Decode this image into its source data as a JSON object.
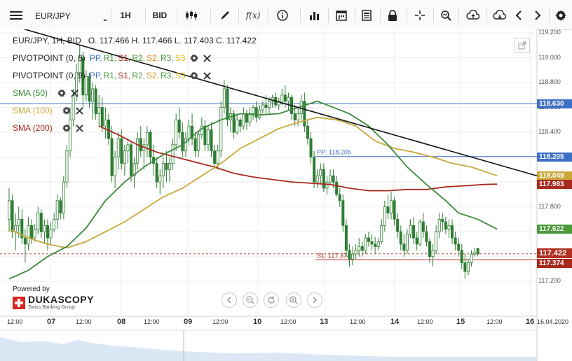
{
  "toolbar": {
    "symbol": "EUR/JPY",
    "timeframe": "1H",
    "price_type": "BID",
    "icons": [
      "menu-icon",
      "candle-type-icon",
      "draw-pen-icon",
      "function-icon",
      "info-icon",
      "bar-volume-icon",
      "calendar-icon",
      "report-icon",
      "lock-icon",
      "crosshair-icon",
      "zoom-icon",
      "upload-icon",
      "download-icon",
      "chevron-left-icon",
      "chevron-right-icon",
      "gear-icon"
    ]
  },
  "header": {
    "ohlc_line": "EUR/JPY, 1H, BID   O. 117.466 H. 117.466 L. 117.403 C. 117.422"
  },
  "legend": {
    "pivot1": {
      "name": "PIVOTPOINT (0, 8)",
      "levels": [
        "PP,",
        "R1,",
        "S1,",
        "R2,",
        "S2,",
        "R3,",
        "S3"
      ]
    },
    "pivot2": {
      "name": "PIVOTPOINT (0, 9)",
      "levels": [
        "PP,",
        "R1,",
        "S1,",
        "R2,",
        "S2,",
        "R3,",
        "S3"
      ]
    },
    "sma50": "SMA (50)",
    "sma100": "SMA (100)",
    "sma200": "SMA (200)"
  },
  "logo": {
    "powered_by": "Powered by",
    "brand": "DUKASCOPY",
    "tagline": "Swiss Banking Group"
  },
  "colors": {
    "candle": "#2e7d32",
    "sma50": "#3a8a3a",
    "sma100": "#c9a83a",
    "sma200": "#a82a1e",
    "pp": "#3e6fc7",
    "s1": "#a82a1e",
    "trend": "#111111",
    "tag_blue": "#3e6fc7",
    "tag_green": "#4a9a3a",
    "tag_yellow": "#c9a83a",
    "tag_red": "#b03020",
    "tag_dark_red": "#a82a1e"
  },
  "chart_data": {
    "type": "candlestick",
    "symbol": "EUR/JPY",
    "timeframe": "1H",
    "ylim": [
      117.1,
      119.2
    ],
    "y_ticks": [
      "119.200",
      "119.000",
      "118.800",
      "118.600",
      "118.400",
      "118.200",
      "118.000",
      "117.800",
      "117.600",
      "117.400",
      "117.200"
    ],
    "x_tick_labels": [
      "12:00",
      "07",
      "12:00",
      "08",
      "12:00",
      "09",
      "12:00",
      "10",
      "12:00",
      "13",
      "12:00",
      "14",
      "12:00",
      "15",
      "12:00",
      "16",
      "16.04.2020"
    ],
    "x_day_labels": [
      "07",
      "08",
      "09",
      "10",
      "13",
      "14",
      "15",
      "16"
    ],
    "horizontal_levels": [
      {
        "name": "",
        "value": 118.63,
        "label": "118.630",
        "color": "#3e6fc7"
      },
      {
        "name": "PP",
        "value": 118.205,
        "label": "118.205",
        "chart_label": "PP: 118.205",
        "color": "#3e6fc7"
      },
      {
        "name": "S1",
        "value": 117.374,
        "label": "117.374",
        "chart_label": "S1: 117.374",
        "color": "#a82a1e"
      }
    ],
    "price_tags": [
      {
        "label": "118.630",
        "value": 118.63,
        "color": "#3e6fc7"
      },
      {
        "label": "118.205",
        "value": 118.205,
        "color": "#3e6fc7"
      },
      {
        "label": "118.049",
        "value": 118.049,
        "color": "#c9a83a"
      },
      {
        "label": "117.983",
        "value": 117.983,
        "color": "#a82a1e"
      },
      {
        "label": "117.622",
        "value": 117.622,
        "color": "#4a9a3a"
      },
      {
        "label": "117.422",
        "value": 117.422,
        "color": "#b03020"
      },
      {
        "label": "117.374",
        "value": 117.374,
        "color": "#a82a1e"
      }
    ],
    "last_close": 117.422,
    "trendline": {
      "from": [
        2,
        119.25
      ],
      "to": [
        166,
        118.05
      ]
    },
    "sma50": [
      [
        0,
        117.22
      ],
      [
        6,
        117.29
      ],
      [
        12,
        117.4
      ],
      [
        18,
        117.48
      ],
      [
        24,
        117.63
      ],
      [
        30,
        117.85
      ],
      [
        36,
        118.0
      ],
      [
        42,
        118.12
      ],
      [
        48,
        118.22
      ],
      [
        54,
        118.3
      ],
      [
        60,
        118.43
      ],
      [
        66,
        118.5
      ],
      [
        72,
        118.55
      ],
      [
        78,
        118.54
      ],
      [
        84,
        118.55
      ],
      [
        90,
        118.6
      ],
      [
        96,
        118.65
      ],
      [
        100,
        118.61
      ],
      [
        106,
        118.55
      ],
      [
        112,
        118.45
      ],
      [
        118,
        118.3
      ],
      [
        124,
        118.12
      ],
      [
        130,
        117.98
      ],
      [
        136,
        117.85
      ],
      [
        140,
        117.75
      ],
      [
        146,
        117.7
      ],
      [
        152,
        117.62
      ]
    ],
    "sma100": [
      [
        0,
        117.62
      ],
      [
        6,
        117.55
      ],
      [
        12,
        117.5
      ],
      [
        18,
        117.47
      ],
      [
        24,
        117.52
      ],
      [
        30,
        117.6
      ],
      [
        36,
        117.68
      ],
      [
        42,
        117.78
      ],
      [
        48,
        117.88
      ],
      [
        54,
        117.95
      ],
      [
        60,
        118.05
      ],
      [
        66,
        118.15
      ],
      [
        72,
        118.27
      ],
      [
        78,
        118.35
      ],
      [
        84,
        118.43
      ],
      [
        90,
        118.48
      ],
      [
        96,
        118.52
      ],
      [
        102,
        118.5
      ],
      [
        108,
        118.45
      ],
      [
        114,
        118.33
      ],
      [
        120,
        118.27
      ],
      [
        126,
        118.24
      ],
      [
        132,
        118.2
      ],
      [
        138,
        118.15
      ],
      [
        144,
        118.12
      ],
      [
        152,
        118.05
      ]
    ],
    "sma200": [
      [
        28,
        118.45
      ],
      [
        34,
        118.38
      ],
      [
        40,
        118.3
      ],
      [
        46,
        118.24
      ],
      [
        52,
        118.2
      ],
      [
        58,
        118.16
      ],
      [
        64,
        118.12
      ],
      [
        70,
        118.07
      ],
      [
        76,
        118.04
      ],
      [
        82,
        118.02
      ],
      [
        88,
        118.0
      ],
      [
        94,
        117.99
      ],
      [
        100,
        117.98
      ],
      [
        106,
        117.95
      ],
      [
        112,
        117.93
      ],
      [
        118,
        117.93
      ],
      [
        124,
        117.94
      ],
      [
        130,
        117.94
      ],
      [
        136,
        117.96
      ],
      [
        142,
        117.97
      ],
      [
        148,
        117.98
      ],
      [
        152,
        117.983
      ]
    ],
    "candles": [
      [
        117.7,
        117.95,
        117.6,
        117.85
      ],
      [
        117.85,
        117.9,
        117.55,
        117.6
      ],
      [
        117.6,
        117.75,
        117.45,
        117.65
      ],
      [
        117.65,
        117.8,
        117.55,
        117.7
      ],
      [
        117.7,
        117.78,
        117.5,
        117.55
      ],
      [
        117.55,
        117.62,
        117.35,
        117.5
      ],
      [
        117.5,
        117.72,
        117.45,
        117.65
      ],
      [
        117.65,
        117.7,
        117.5,
        117.55
      ],
      [
        117.55,
        117.66,
        117.52,
        117.62
      ],
      [
        117.62,
        117.8,
        117.58,
        117.75
      ],
      [
        117.75,
        117.78,
        117.55,
        117.6
      ],
      [
        117.6,
        117.7,
        117.5,
        117.65
      ],
      [
        117.65,
        117.7,
        117.45,
        117.55
      ],
      [
        117.55,
        117.68,
        117.5,
        117.62
      ],
      [
        117.62,
        117.75,
        117.6,
        117.7
      ],
      [
        117.7,
        117.9,
        117.62,
        117.85
      ],
      [
        117.85,
        117.88,
        117.7,
        117.75
      ],
      [
        117.75,
        118.05,
        117.7,
        118.0
      ],
      [
        118.0,
        118.3,
        117.95,
        118.25
      ],
      [
        118.25,
        118.6,
        118.2,
        118.5
      ],
      [
        118.5,
        118.75,
        118.45,
        118.7
      ],
      [
        118.7,
        118.95,
        118.65,
        118.88
      ],
      [
        118.88,
        119.1,
        118.8,
        119.0
      ],
      [
        119.0,
        119.05,
        118.6,
        118.7
      ],
      [
        118.7,
        118.9,
        118.65,
        118.85
      ],
      [
        118.85,
        118.88,
        118.6,
        118.65
      ],
      [
        118.65,
        118.8,
        118.5,
        118.75
      ],
      [
        118.75,
        118.78,
        118.5,
        118.55
      ],
      [
        118.55,
        118.7,
        118.45,
        118.6
      ],
      [
        118.6,
        118.68,
        118.4,
        118.45
      ],
      [
        118.45,
        118.6,
        118.35,
        118.5
      ],
      [
        118.5,
        118.55,
        118.3,
        118.35
      ],
      [
        118.35,
        118.45,
        118.0,
        118.05
      ],
      [
        118.05,
        118.25,
        117.95,
        118.2
      ],
      [
        118.2,
        118.4,
        118.1,
        118.35
      ],
      [
        118.35,
        118.42,
        118.1,
        118.15
      ],
      [
        118.15,
        118.3,
        118.05,
        118.25
      ],
      [
        118.25,
        118.35,
        118.15,
        118.3
      ],
      [
        118.3,
        118.32,
        118.0,
        118.05
      ],
      [
        118.05,
        118.2,
        117.95,
        118.15
      ],
      [
        118.15,
        118.4,
        118.1,
        118.35
      ],
      [
        118.35,
        118.45,
        118.2,
        118.25
      ],
      [
        118.25,
        118.35,
        118.1,
        118.3
      ],
      [
        118.3,
        118.45,
        118.2,
        118.4
      ],
      [
        118.4,
        118.42,
        118.15,
        118.2
      ],
      [
        118.2,
        118.3,
        118.05,
        118.15
      ],
      [
        118.15,
        118.2,
        117.95,
        118.0
      ],
      [
        118.0,
        118.1,
        117.9,
        118.05
      ],
      [
        118.05,
        118.2,
        117.95,
        118.15
      ],
      [
        118.15,
        118.25,
        118.0,
        118.1
      ],
      [
        118.1,
        118.2,
        118.0,
        118.15
      ],
      [
        118.15,
        118.35,
        118.1,
        118.3
      ],
      [
        118.3,
        118.55,
        118.25,
        118.5
      ],
      [
        118.5,
        118.6,
        118.35,
        118.4
      ],
      [
        118.4,
        118.48,
        118.2,
        118.25
      ],
      [
        118.25,
        118.4,
        118.2,
        118.35
      ],
      [
        118.35,
        118.5,
        118.3,
        118.45
      ],
      [
        118.45,
        118.55,
        118.3,
        118.35
      ],
      [
        118.35,
        118.4,
        118.2,
        118.25
      ],
      [
        118.25,
        118.4,
        118.2,
        118.38
      ],
      [
        118.38,
        118.52,
        118.35,
        118.45
      ],
      [
        118.45,
        118.5,
        118.25,
        118.3
      ],
      [
        118.3,
        118.45,
        118.25,
        118.42
      ],
      [
        118.42,
        118.48,
        118.2,
        118.25
      ],
      [
        118.25,
        118.3,
        118.1,
        118.15
      ],
      [
        118.15,
        118.3,
        118.1,
        118.25
      ],
      [
        118.25,
        118.65,
        118.2,
        118.6
      ],
      [
        118.6,
        118.82,
        118.55,
        118.75
      ],
      [
        118.75,
        118.78,
        118.45,
        118.5
      ],
      [
        118.5,
        118.6,
        118.4,
        118.55
      ],
      [
        118.55,
        118.58,
        118.35,
        118.4
      ],
      [
        118.4,
        118.55,
        118.38,
        118.5
      ],
      [
        118.5,
        118.52,
        118.4,
        118.45
      ],
      [
        118.45,
        118.6,
        118.42,
        118.55
      ],
      [
        118.55,
        118.58,
        118.42,
        118.48
      ],
      [
        118.48,
        118.6,
        118.45,
        118.55
      ],
      [
        118.55,
        118.62,
        118.5,
        118.6
      ],
      [
        118.6,
        118.65,
        118.48,
        118.52
      ],
      [
        118.52,
        118.62,
        118.5,
        118.58
      ],
      [
        118.58,
        118.65,
        118.55,
        118.62
      ],
      [
        118.62,
        118.7,
        118.55,
        118.6
      ],
      [
        118.6,
        118.68,
        118.55,
        118.65
      ],
      [
        118.65,
        118.7,
        118.6,
        118.68
      ],
      [
        118.68,
        118.72,
        118.6,
        118.62
      ],
      [
        118.62,
        118.68,
        118.58,
        118.65
      ],
      [
        118.65,
        118.75,
        118.62,
        118.7
      ],
      [
        118.7,
        118.78,
        118.6,
        118.65
      ],
      [
        118.65,
        118.72,
        118.58,
        118.68
      ],
      [
        118.68,
        118.7,
        118.5,
        118.55
      ],
      [
        118.55,
        118.62,
        118.45,
        118.5
      ],
      [
        118.5,
        118.6,
        118.45,
        118.55
      ],
      [
        118.55,
        118.7,
        118.5,
        118.65
      ],
      [
        118.65,
        118.72,
        118.4,
        118.45
      ],
      [
        118.45,
        118.5,
        118.3,
        118.35
      ],
      [
        118.35,
        118.4,
        118.15,
        118.2
      ],
      [
        118.2,
        118.25,
        117.95,
        118.0
      ],
      [
        118.0,
        118.1,
        117.95,
        118.05
      ],
      [
        118.05,
        118.15,
        117.98,
        118.1
      ],
      [
        118.1,
        118.15,
        117.92,
        117.95
      ],
      [
        117.95,
        118.05,
        117.9,
        118.0
      ],
      [
        118.0,
        118.1,
        117.98,
        118.05
      ],
      [
        118.05,
        118.1,
        117.95,
        118.0
      ],
      [
        118.0,
        118.05,
        117.88,
        117.9
      ],
      [
        117.9,
        117.95,
        117.8,
        117.85
      ],
      [
        117.85,
        117.9,
        117.6,
        117.65
      ],
      [
        117.65,
        117.7,
        117.4,
        117.45
      ],
      [
        117.45,
        117.5,
        117.32,
        117.38
      ],
      [
        117.38,
        117.48,
        117.33,
        117.42
      ],
      [
        117.42,
        117.5,
        117.38,
        117.45
      ],
      [
        117.45,
        117.55,
        117.4,
        117.48
      ],
      [
        117.48,
        117.52,
        117.4,
        117.45
      ],
      [
        117.45,
        117.58,
        117.42,
        117.55
      ],
      [
        117.55,
        117.6,
        117.48,
        117.52
      ],
      [
        117.52,
        117.58,
        117.45,
        117.5
      ],
      [
        117.5,
        117.56,
        117.42,
        117.48
      ],
      [
        117.48,
        117.55,
        117.45,
        117.52
      ],
      [
        117.52,
        117.7,
        117.5,
        117.65
      ],
      [
        117.65,
        117.85,
        117.6,
        117.8
      ],
      [
        117.8,
        117.9,
        117.7,
        117.75
      ],
      [
        117.75,
        117.92,
        117.7,
        117.85
      ],
      [
        117.85,
        117.88,
        117.65,
        117.7
      ],
      [
        117.7,
        117.75,
        117.55,
        117.6
      ],
      [
        117.6,
        117.65,
        117.45,
        117.5
      ],
      [
        117.5,
        117.58,
        117.4,
        117.45
      ],
      [
        117.45,
        117.62,
        117.42,
        117.58
      ],
      [
        117.58,
        117.7,
        117.55,
        117.65
      ],
      [
        117.65,
        117.72,
        117.5,
        117.55
      ],
      [
        117.55,
        117.6,
        117.45,
        117.5
      ],
      [
        117.5,
        117.7,
        117.48,
        117.68
      ],
      [
        117.68,
        117.75,
        117.55,
        117.6
      ],
      [
        117.6,
        117.65,
        117.48,
        117.52
      ],
      [
        117.52,
        117.55,
        117.35,
        117.4
      ],
      [
        117.4,
        117.5,
        117.32,
        117.45
      ],
      [
        117.45,
        117.65,
        117.42,
        117.6
      ],
      [
        117.6,
        117.75,
        117.55,
        117.7
      ],
      [
        117.7,
        117.75,
        117.6,
        117.68
      ],
      [
        117.68,
        117.72,
        117.58,
        117.62
      ],
      [
        117.62,
        117.7,
        117.55,
        117.65
      ],
      [
        117.65,
        117.7,
        117.5,
        117.55
      ],
      [
        117.55,
        117.6,
        117.45,
        117.5
      ],
      [
        117.5,
        117.55,
        117.4,
        117.45
      ],
      [
        117.45,
        117.5,
        117.3,
        117.35
      ],
      [
        117.35,
        117.42,
        117.22,
        117.28
      ],
      [
        117.28,
        117.38,
        117.25,
        117.35
      ],
      [
        117.35,
        117.45,
        117.32,
        117.42
      ],
      [
        117.42,
        117.47,
        117.4,
        117.43
      ],
      [
        117.466,
        117.466,
        117.403,
        117.422
      ]
    ]
  }
}
